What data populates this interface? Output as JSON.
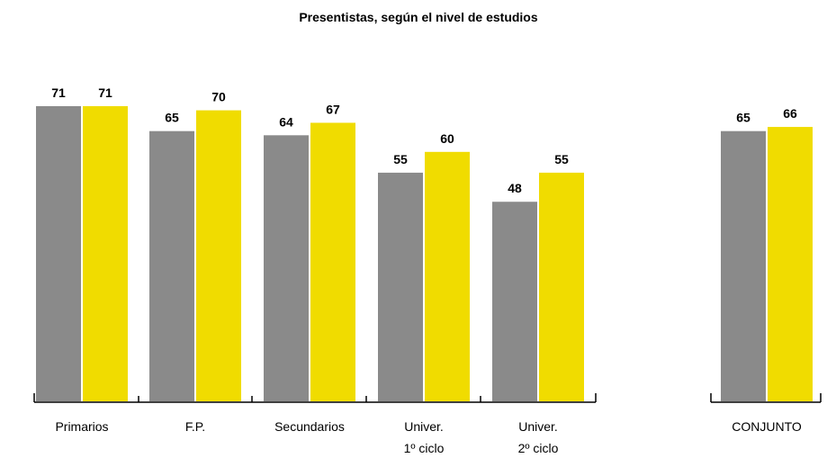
{
  "chart_data": {
    "type": "bar",
    "title": "Presentistas, según el nivel de estudios",
    "categories": [
      "Primarios",
      "F.P.",
      "Secundarios",
      "Univer.\n1º ciclo",
      "Univer.\n2º ciclo",
      "CONJUNTO"
    ],
    "series": [
      {
        "color": "#8a8a8a",
        "values": [
          71,
          65,
          64,
          55,
          48,
          65
        ]
      },
      {
        "color": "#f0dc00",
        "values": [
          71,
          70,
          67,
          60,
          55,
          66
        ]
      }
    ]
  }
}
